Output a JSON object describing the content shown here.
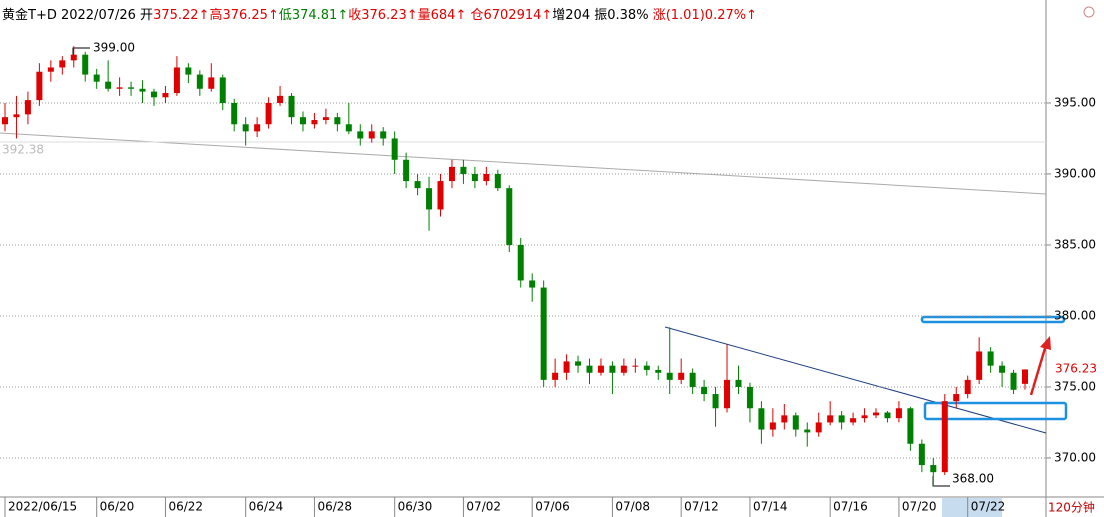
{
  "header": [
    "黄金T+D 2022/07/26",
    "开",
    "375.22↑",
    "高376.25↑",
    "低374.81↑",
    "收376.23↑",
    "量684↑",
    "仓6702914↑",
    "增204",
    "振0.38%",
    "涨(1.01)0.27%↑"
  ],
  "chart_data": {
    "type": "candlestick",
    "categories": [
      "2022/06/15",
      null,
      null,
      null,
      null,
      null,
      null,
      null,
      "06/20",
      null,
      null,
      null,
      null,
      null,
      "06/22",
      null,
      null,
      null,
      null,
      null,
      null,
      "06/24",
      null,
      null,
      null,
      null,
      null,
      "06/28",
      null,
      null,
      null,
      null,
      null,
      null,
      "06/30",
      null,
      null,
      null,
      null,
      null,
      "07/02",
      null,
      null,
      null,
      null,
      null,
      "07/06",
      null,
      null,
      null,
      null,
      null,
      null,
      "07/08",
      null,
      null,
      null,
      null,
      null,
      "07/12",
      null,
      null,
      null,
      null,
      null,
      "07/14",
      null,
      null,
      null,
      null,
      null,
      null,
      "07/16",
      null,
      null,
      null,
      null,
      null,
      "07/20",
      null,
      null,
      null,
      null,
      null,
      "07/22",
      null,
      null,
      null,
      null,
      null
    ],
    "open": [
      393.5,
      394,
      394.2,
      395.2,
      397.2,
      397.5,
      398,
      398.4,
      397,
      396.5,
      396,
      396.1,
      396,
      395.8,
      395.4,
      395.7,
      397.5,
      397,
      396,
      396.8,
      395,
      393.5,
      393,
      393.5,
      395,
      395.5,
      394,
      393.5,
      393.8,
      394,
      393.5,
      393,
      392.5,
      393,
      392.5,
      391,
      389.5,
      389,
      387.5,
      389.5,
      390.5,
      390,
      389.5,
      390,
      389,
      385,
      382.5,
      382,
      375.5,
      376,
      376.8,
      376.5,
      376,
      376.5,
      376,
      376.5,
      376.5,
      376.2,
      376,
      375.5,
      376,
      375,
      374.5,
      373.5,
      375.5,
      375,
      373.5,
      372,
      372.5,
      373,
      372,
      371.8,
      372.5,
      373,
      372.5,
      372.8,
      373,
      373.2,
      372.8,
      373.5,
      371,
      369.5,
      369,
      374,
      374.5,
      375.5,
      377.5,
      376.5,
      376,
      375.22
    ],
    "high": [
      395,
      395.5,
      395.8,
      397.8,
      398,
      398.3,
      399,
      398.6,
      397.4,
      398,
      396.8,
      396.5,
      396.6,
      396,
      396.2,
      398.3,
      397.8,
      397.3,
      397.8,
      397,
      395.3,
      394,
      394,
      395.4,
      396.2,
      395.7,
      394.4,
      394.3,
      394.6,
      394.3,
      395,
      393.5,
      393.5,
      393.3,
      393,
      391.5,
      390,
      389.8,
      390,
      391,
      391,
      390.5,
      390.5,
      390.3,
      389.2,
      385.5,
      383,
      382.5,
      377,
      377.3,
      377.2,
      377,
      377,
      376.8,
      377,
      377,
      376.8,
      376.5,
      379.2,
      377,
      376.3,
      375.5,
      375,
      378,
      376.5,
      375.3,
      374,
      373.5,
      373.8,
      373.2,
      372.5,
      373.2,
      374,
      373.3,
      373.2,
      373.5,
      373.5,
      373.3,
      374,
      373.6,
      371.3,
      370,
      374.5,
      375,
      375.8,
      378.5,
      377.8,
      376.8,
      376.2,
      376.25
    ],
    "low": [
      393,
      392.5,
      393.5,
      394.8,
      396.5,
      397,
      397.5,
      396.5,
      396,
      395.8,
      395.5,
      395.5,
      395,
      394.8,
      395,
      395.5,
      396.4,
      395.5,
      395.8,
      394.5,
      393,
      392,
      392.6,
      393.2,
      394.8,
      393.5,
      393,
      393.2,
      393.5,
      393,
      392.8,
      392,
      392.2,
      392,
      390,
      389,
      388.5,
      386,
      387,
      389,
      389.3,
      389,
      389.2,
      388.8,
      384.5,
      382,
      381,
      375,
      375,
      375.5,
      376,
      375.2,
      375.8,
      374.5,
      375.8,
      376,
      375.8,
      375.5,
      374.5,
      375.2,
      374.5,
      374,
      372.2,
      373.2,
      374.5,
      372.5,
      371,
      371.5,
      372,
      371.5,
      370.8,
      371.5,
      372.3,
      372,
      372.3,
      372.5,
      372.8,
      372.5,
      372.5,
      370.5,
      369,
      368,
      368.8,
      373.5,
      374.2,
      375.2,
      376,
      375,
      374.5,
      374.81
    ],
    "close": [
      394,
      394.2,
      395.2,
      397.2,
      397.5,
      398,
      398.4,
      397,
      396.5,
      396,
      396.1,
      396,
      395.8,
      395.4,
      395.7,
      397.5,
      397,
      396,
      396.8,
      395,
      393.5,
      393,
      393.5,
      395,
      395.5,
      394,
      393.5,
      393.8,
      394,
      393.5,
      393,
      392.5,
      393,
      392.5,
      391,
      389.5,
      389,
      387.5,
      389.5,
      390.5,
      390,
      389.5,
      390,
      389,
      385,
      382.5,
      382,
      375.5,
      376,
      376.8,
      376.5,
      376,
      376.5,
      376,
      376.5,
      376.5,
      376.2,
      376,
      375.5,
      376,
      375,
      374.5,
      373.5,
      375.5,
      375,
      373.5,
      372,
      372.5,
      373,
      372,
      371.8,
      372.5,
      373,
      372.5,
      372.8,
      373,
      373.2,
      372.8,
      373.5,
      371,
      369.5,
      369,
      374,
      374.5,
      375.5,
      377.5,
      376.5,
      376,
      374.8,
      376.23
    ],
    "up_color": "#e00000",
    "down_color": "#008000",
    "ylim": [
      367.25,
      400.28
    ],
    "yticks": [
      {
        "value": 395,
        "label": "395.00"
      },
      {
        "value": 390,
        "label": "390.00"
      },
      {
        "value": 385,
        "label": "385.00"
      },
      {
        "value": 380,
        "label": "380.00"
      },
      {
        "value": 375,
        "label": "375.00"
      },
      {
        "value": 370,
        "label": "370.00"
      }
    ],
    "grid": true,
    "high_label": "399.00",
    "low_label": "368.00",
    "last_label": "376.23",
    "ref_label": "392.38",
    "period": "120分钟"
  }
}
